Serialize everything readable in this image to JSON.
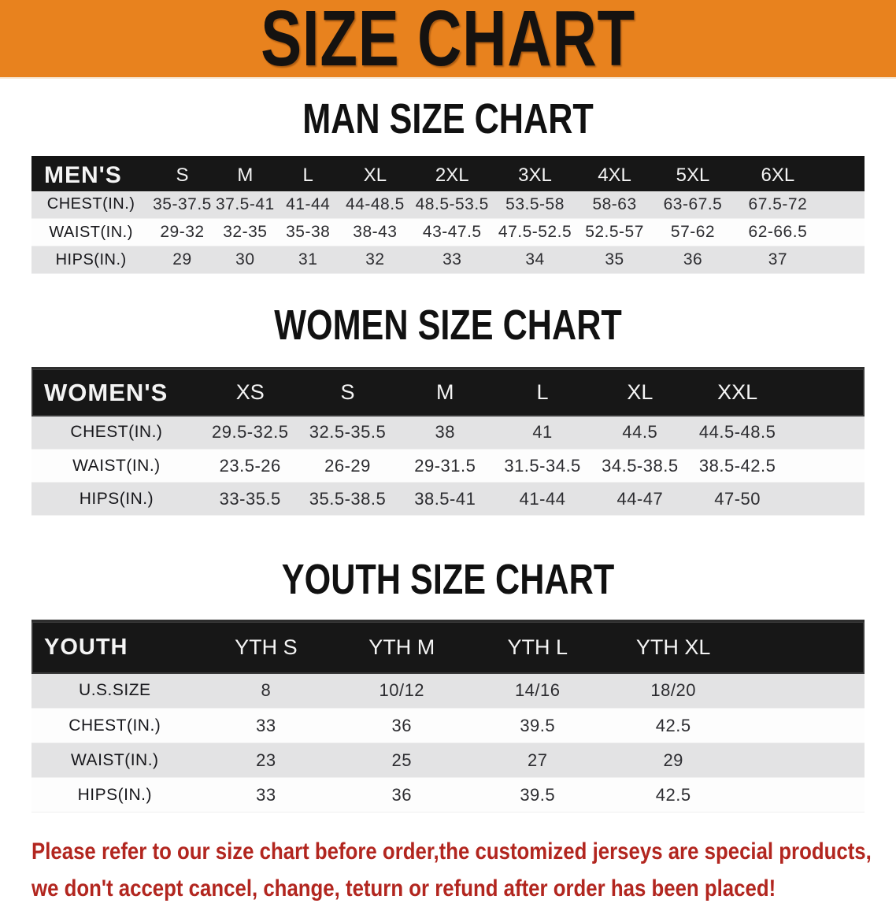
{
  "banner": {
    "title": "SIZE CHART"
  },
  "colors": {
    "banner_bg": "#E8821E",
    "table_header_bg": "#171717",
    "row_alt_bg": "#E3E3E4",
    "footer_text": "#B2261F"
  },
  "sections": [
    {
      "title": "MAN SIZE CHART",
      "header_label": "MEN'S",
      "columns": [
        "S",
        "M",
        "L",
        "XL",
        "2XL",
        "3XL",
        "4XL",
        "5XL",
        "6XL"
      ],
      "rows": [
        {
          "label": "CHEST(IN.)",
          "values": [
            "35-37.5",
            "37.5-41",
            "41-44",
            "44-48.5",
            "48.5-53.5",
            "53.5-58",
            "58-63",
            "63-67.5",
            "67.5-72"
          ]
        },
        {
          "label": "WAIST(IN.)",
          "values": [
            "29-32",
            "32-35",
            "35-38",
            "38-43",
            "43-47.5",
            "47.5-52.5",
            "52.5-57",
            "57-62",
            "62-66.5"
          ]
        },
        {
          "label": "HIPS(IN.)",
          "values": [
            "29",
            "30",
            "31",
            "32",
            "33",
            "34",
            "35",
            "36",
            "37"
          ]
        }
      ]
    },
    {
      "title": "WOMEN SIZE CHART",
      "header_label": "WOMEN'S",
      "columns": [
        "XS",
        "S",
        "M",
        "L",
        "XL",
        "XXL"
      ],
      "rows": [
        {
          "label": "CHEST(IN.)",
          "values": [
            "29.5-32.5",
            "32.5-35.5",
            "38",
            "41",
            "44.5",
            "44.5-48.5"
          ]
        },
        {
          "label": "WAIST(IN.)",
          "values": [
            "23.5-26",
            "26-29",
            "29-31.5",
            "31.5-34.5",
            "34.5-38.5",
            "38.5-42.5"
          ]
        },
        {
          "label": "HIPS(IN.)",
          "values": [
            "33-35.5",
            "35.5-38.5",
            "38.5-41",
            "41-44",
            "44-47",
            "47-50"
          ]
        }
      ]
    },
    {
      "title": "YOUTH SIZE CHART",
      "header_label": "YOUTH",
      "columns": [
        "YTH S",
        "YTH M",
        "YTH L",
        "YTH XL"
      ],
      "rows": [
        {
          "label": "U.S.SIZE",
          "values": [
            "8",
            "10/12",
            "14/16",
            "18/20"
          ]
        },
        {
          "label": "CHEST(IN.)",
          "values": [
            "33",
            "36",
            "39.5",
            "42.5"
          ]
        },
        {
          "label": "WAIST(IN.)",
          "values": [
            "23",
            "25",
            "27",
            "29"
          ]
        },
        {
          "label": "HIPS(IN.)",
          "values": [
            "33",
            "36",
            "39.5",
            "42.5"
          ]
        }
      ]
    }
  ],
  "footer": {
    "line1": "Please refer to our size chart before order,the customized jerseys are special products,",
    "line2": "we don't accept cancel, change, teturn or refund after order has been placed!"
  }
}
